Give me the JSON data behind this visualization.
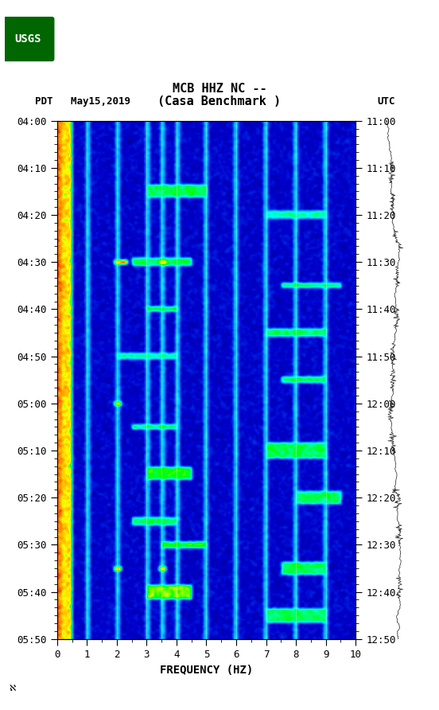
{
  "title_line1": "MCB HHZ NC --",
  "title_line2": "(Casa Benchmark )",
  "left_label": "PDT   May15,2019",
  "right_label": "UTC",
  "xlabel": "FREQUENCY (HZ)",
  "freq_min": 0,
  "freq_max": 10,
  "time_start_pdt": "04:00",
  "time_end_pdt": "05:50",
  "time_start_utc": "11:00",
  "time_end_utc": "12:50",
  "left_ticks": [
    "04:00",
    "04:10",
    "04:20",
    "04:30",
    "04:40",
    "04:50",
    "05:00",
    "05:10",
    "05:20",
    "05:30",
    "05:40",
    "05:50"
  ],
  "right_ticks": [
    "11:00",
    "11:10",
    "11:20",
    "11:30",
    "11:40",
    "11:50",
    "12:00",
    "12:10",
    "12:20",
    "12:30",
    "12:40",
    "12:50"
  ],
  "freq_ticks": [
    0,
    1,
    2,
    3,
    4,
    5,
    6,
    7,
    8,
    9,
    10
  ],
  "vertical_lines_freq": [
    1.0,
    2.0,
    3.0,
    3.5,
    4.0,
    5.0,
    6.0,
    7.0,
    8.0,
    9.0
  ],
  "fig_width": 5.52,
  "fig_height": 8.92,
  "dpi": 100,
  "background_color": "#ffffff",
  "spectrogram_bg": "#00008B"
}
